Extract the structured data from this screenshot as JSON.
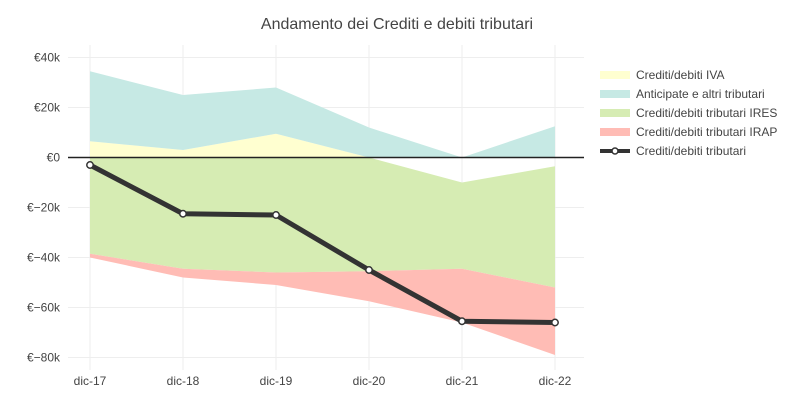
{
  "chart_data": {
    "type": "area",
    "title": "Andamento dei Crediti e debiti tributari",
    "categories": [
      "dic-17",
      "dic-18",
      "dic-19",
      "dic-20",
      "dic-21",
      "dic-22"
    ],
    "ylim": [
      -85000,
      45000
    ],
    "yticks": [
      40000,
      20000,
      0,
      -20000,
      -40000,
      -60000,
      -80000
    ],
    "ytick_labels": [
      "€40k",
      "€20k",
      "€0",
      "€−20k",
      "€−40k",
      "€−60k",
      "€−80k"
    ],
    "grid": true,
    "legend_position": "right",
    "series": [
      {
        "name": "Crediti/debiti IVA",
        "kind": "area",
        "color": "#ffffd0",
        "lower": [
          0,
          0,
          0,
          0,
          0,
          0
        ],
        "upper": [
          6500,
          3000,
          9500,
          0,
          0,
          0
        ]
      },
      {
        "name": "Anticipate e altri tributari",
        "kind": "area",
        "color": "#c6e9e4",
        "lower": [
          6500,
          3000,
          9500,
          0,
          0,
          0
        ],
        "upper": [
          34500,
          25000,
          28000,
          12000,
          0,
          12500
        ]
      },
      {
        "name": "Crediti/debiti tributari IRES",
        "kind": "area",
        "color": "#d6ecb3",
        "lower": [
          -38500,
          -44500,
          -46000,
          -45500,
          -44500,
          -52000
        ],
        "upper": [
          0,
          0,
          0,
          0,
          -10000,
          -3500
        ]
      },
      {
        "name": "Crediti/debiti tributari IRAP",
        "kind": "area",
        "color": "#ffbcb5",
        "lower": [
          -40000,
          -48000,
          -51000,
          -57500,
          -66000,
          -79000
        ],
        "upper": [
          -38500,
          -44500,
          -46000,
          -45500,
          -44500,
          -52000
        ]
      },
      {
        "name": "Crediti/debiti tributari",
        "kind": "line",
        "color": "#333333",
        "values": [
          -3000,
          -22500,
          -23000,
          -45000,
          -65500,
          -66000
        ]
      }
    ]
  }
}
